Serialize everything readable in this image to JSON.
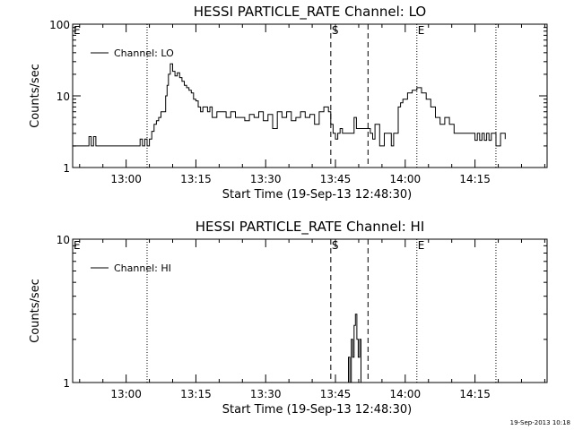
{
  "chart_data": [
    {
      "type": "line",
      "title": "HESSI PARTICLE_RATE Channel: LO",
      "xlabel": "Start Time (19-Sep-13 12:48:30)",
      "ylabel": "Counts/sec",
      "y_scale": "log",
      "ylim": [
        1,
        100
      ],
      "y_ticks": [
        1,
        10,
        100
      ],
      "y_tick_labels": [
        "1",
        "10",
        "100"
      ],
      "x_range_minutes": [
        0,
        102
      ],
      "x_ticks": [
        {
          "minute": 11.5,
          "label": "13:00"
        },
        {
          "minute": 26.5,
          "label": "13:15"
        },
        {
          "minute": 41.5,
          "label": "13:30"
        },
        {
          "minute": 56.5,
          "label": "13:45"
        },
        {
          "minute": 71.5,
          "label": "14:00"
        },
        {
          "minute": 86.5,
          "label": "14:15"
        }
      ],
      "series": [
        {
          "name": "Channel: LO",
          "x": [
            0,
            3,
            3.5,
            4,
            4.5,
            5,
            5.5,
            6,
            6.5,
            7,
            14,
            14.5,
            15,
            15.5,
            16,
            16.5,
            17,
            17.5,
            18,
            18.5,
            19,
            20,
            20.3,
            20.6,
            21,
            21.5,
            22,
            22.5,
            23,
            23.5,
            24,
            24.5,
            25,
            25.5,
            26,
            26.5,
            27,
            27.5,
            28,
            28.5,
            29,
            29.5,
            30,
            31,
            32,
            33,
            34,
            35,
            36,
            37,
            38,
            39,
            40,
            41,
            42,
            43,
            44,
            45,
            46,
            47,
            48,
            49,
            50,
            51,
            52,
            53,
            54,
            55,
            55.5,
            56,
            56.5,
            57,
            57.5,
            58,
            59,
            60,
            60.5,
            61,
            62,
            63,
            64,
            64.5,
            65,
            66,
            67,
            68,
            68.5,
            69,
            70,
            70.5,
            71,
            72,
            73,
            74,
            75,
            76,
            77,
            78,
            79,
            80,
            81,
            82,
            83,
            84,
            85,
            86,
            86.5,
            87,
            87.5,
            88,
            88.5,
            89,
            89.5,
            90,
            91,
            92,
            93
          ],
          "y": [
            2,
            2,
            2.7,
            2,
            2.7,
            2,
            2,
            2,
            2,
            2,
            2,
            2.5,
            2,
            2.5,
            2,
            2.5,
            3.2,
            4,
            4.5,
            5,
            6,
            10,
            14,
            20,
            28,
            22,
            19,
            21,
            18,
            16,
            14,
            13,
            12,
            11,
            9,
            8.5,
            7,
            6,
            7,
            7,
            6,
            7,
            5,
            6,
            6,
            5,
            6,
            5,
            5,
            4.5,
            5.5,
            5,
            6,
            4.5,
            5.5,
            3.5,
            6,
            5,
            6,
            4.5,
            5,
            6,
            5,
            5.5,
            4,
            6,
            7,
            6,
            4,
            3,
            2.5,
            3,
            3.5,
            3,
            3,
            3,
            5,
            3.5,
            3.5,
            3.5,
            3,
            2.5,
            4,
            2,
            3,
            3,
            2,
            3,
            7,
            8,
            9,
            11,
            12,
            13,
            11,
            9,
            7,
            5,
            4,
            5,
            4,
            3,
            3,
            3,
            3,
            3,
            2.4,
            3,
            2.4,
            3,
            2.4,
            3,
            2.4,
            3,
            2,
            3,
            2.5
          ],
          "color": "#000000"
        }
      ],
      "annotations": [
        {
          "text": "E",
          "minute": 0
        },
        {
          "text": "S",
          "minute": 55.5
        },
        {
          "text": "E",
          "minute": 74
        }
      ],
      "dotted_lines_minutes": [
        16,
        74,
        91
      ],
      "dashed_lines_minutes": [
        55.5,
        63.5
      ],
      "legend": "top-left"
    },
    {
      "type": "line",
      "title": "HESSI PARTICLE_RATE Channel: HI",
      "xlabel": "Start Time (19-Sep-13 12:48:30)",
      "ylabel": "Counts/sec",
      "y_scale": "log",
      "ylim": [
        1,
        10
      ],
      "y_ticks": [
        1,
        10
      ],
      "y_tick_labels": [
        "1",
        "10"
      ],
      "x_range_minutes": [
        0,
        102
      ],
      "x_ticks": [
        {
          "minute": 11.5,
          "label": "13:00"
        },
        {
          "minute": 26.5,
          "label": "13:15"
        },
        {
          "minute": 41.5,
          "label": "13:30"
        },
        {
          "minute": 56.5,
          "label": "13:45"
        },
        {
          "minute": 71.5,
          "label": "14:00"
        },
        {
          "minute": 86.5,
          "label": "14:15"
        }
      ],
      "series": [
        {
          "name": "Channel: HI",
          "x": [
            59,
            59.3,
            59.6,
            59.9,
            60.2,
            60.5,
            60.8,
            61.1,
            61.4,
            61.7,
            62
          ],
          "y": [
            1,
            1.5,
            1,
            2,
            1.5,
            2.5,
            3,
            2,
            1.5,
            2,
            1
          ],
          "color": "#000000"
        }
      ],
      "annotations": [
        {
          "text": "E",
          "minute": 0
        },
        {
          "text": "S",
          "minute": 55.5
        },
        {
          "text": "E",
          "minute": 74
        }
      ],
      "dotted_lines_minutes": [
        16,
        74,
        91
      ],
      "dashed_lines_minutes": [
        55.5,
        63.5
      ],
      "legend": "top-left"
    }
  ],
  "timestamp": "19-Sep-2013 10:18"
}
